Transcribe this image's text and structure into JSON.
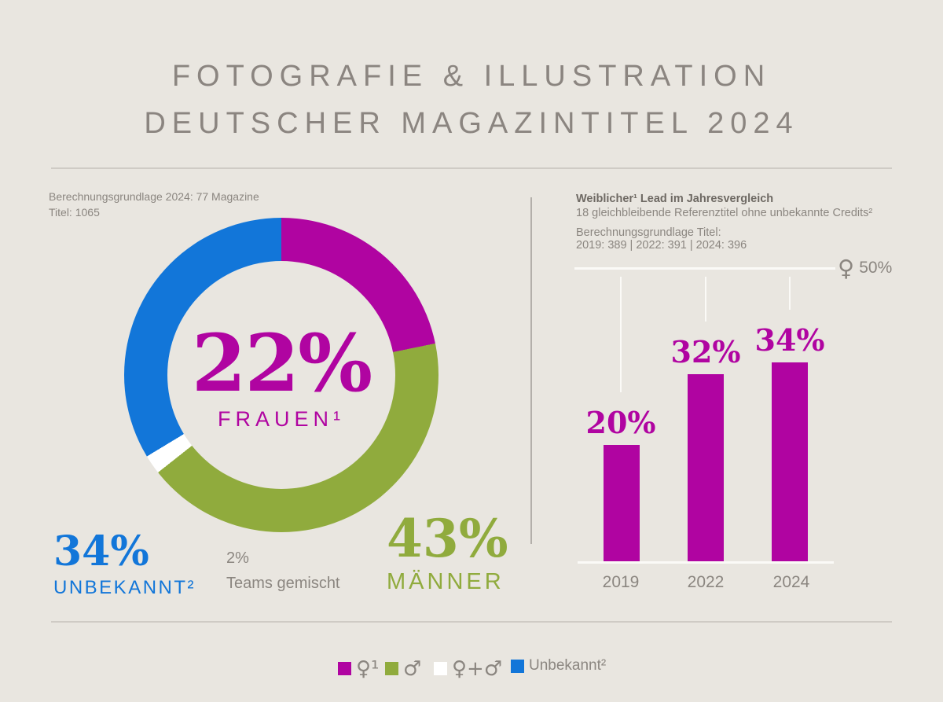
{
  "title": {
    "line1": "FOTOGRAFIE & ILLUSTRATION",
    "line2": "DEUTSCHER MAGAZINTITEL 2024"
  },
  "colors": {
    "magenta": "#b004a1",
    "green": "#90ab3d",
    "blue": "#1276d9",
    "white": "#ffffff",
    "background": "#e9e6e0",
    "text_gray": "#8b8680",
    "divider": "#cfcbc5",
    "line_white": "#fbfaf7"
  },
  "donut_section": {
    "note_line1": "Berechnungsgrundlage 2024: 77 Magazine",
    "note_line2": "Titel: 1065",
    "center_value": "22%",
    "center_label": "FRAUEN¹",
    "unknown_value": "34%",
    "unknown_label": "UNBEKANNT²",
    "mixed_value": "2%",
    "mixed_label": "Teams gemischt",
    "men_value": "43%",
    "men_label": "MÄNNER"
  },
  "bar_section": {
    "title": "Weiblicher¹ Lead im Jahresvergleich",
    "subtitle": "18 gleichbleibende Referenztitel ohne unbekannte Credits²",
    "basis_line1": "Berechnungsgrundlage Titel:",
    "basis_line2": "2019: 389 | 2022: 391 | 2024: 396",
    "reference_symbol": "♀",
    "reference_label": "50%"
  },
  "legend": {
    "items": [
      {
        "symbol": "♀¹",
        "color": "#b004a1",
        "label": ""
      },
      {
        "symbol": "♂",
        "color": "#90ab3d",
        "label": ""
      },
      {
        "symbol": "♀+♂",
        "color": "#ffffff",
        "label": ""
      },
      {
        "symbol": "",
        "color": "#1276d9",
        "label": "Unbekannt²"
      }
    ]
  },
  "chart_data": [
    {
      "type": "pie",
      "donut": true,
      "title": "Fotografie & Illustration deutscher Magazintitel 2024",
      "basis": "Berechnungsgrundlage 2024: 77 Magazine, Titel: 1065",
      "start_angle_deg": 0,
      "direction": "clockwise",
      "slices": [
        {
          "label": "Frauen",
          "value_pct": 22,
          "color": "#b004a1"
        },
        {
          "label": "Männer",
          "value_pct": 43,
          "color": "#90ab3d"
        },
        {
          "label": "Teams gemischt",
          "value_pct": 2,
          "color": "#ffffff"
        },
        {
          "label": "Unbekannt",
          "value_pct": 34,
          "color": "#1276d9"
        }
      ]
    },
    {
      "type": "bar",
      "title": "Weiblicher Lead im Jahresvergleich",
      "subtitle": "18 gleichbleibende Referenztitel ohne unbekannte Credits",
      "categories": [
        "2019",
        "2022",
        "2024"
      ],
      "values": [
        20,
        32,
        34
      ],
      "value_labels": [
        "20%",
        "32%",
        "34%"
      ],
      "ylim": [
        0,
        50
      ],
      "reference_line": {
        "value": 50,
        "label": "♀ 50%"
      },
      "bar_color": "#b004a1",
      "basis": "2019: 389 | 2022: 391 | 2024: 396"
    }
  ]
}
